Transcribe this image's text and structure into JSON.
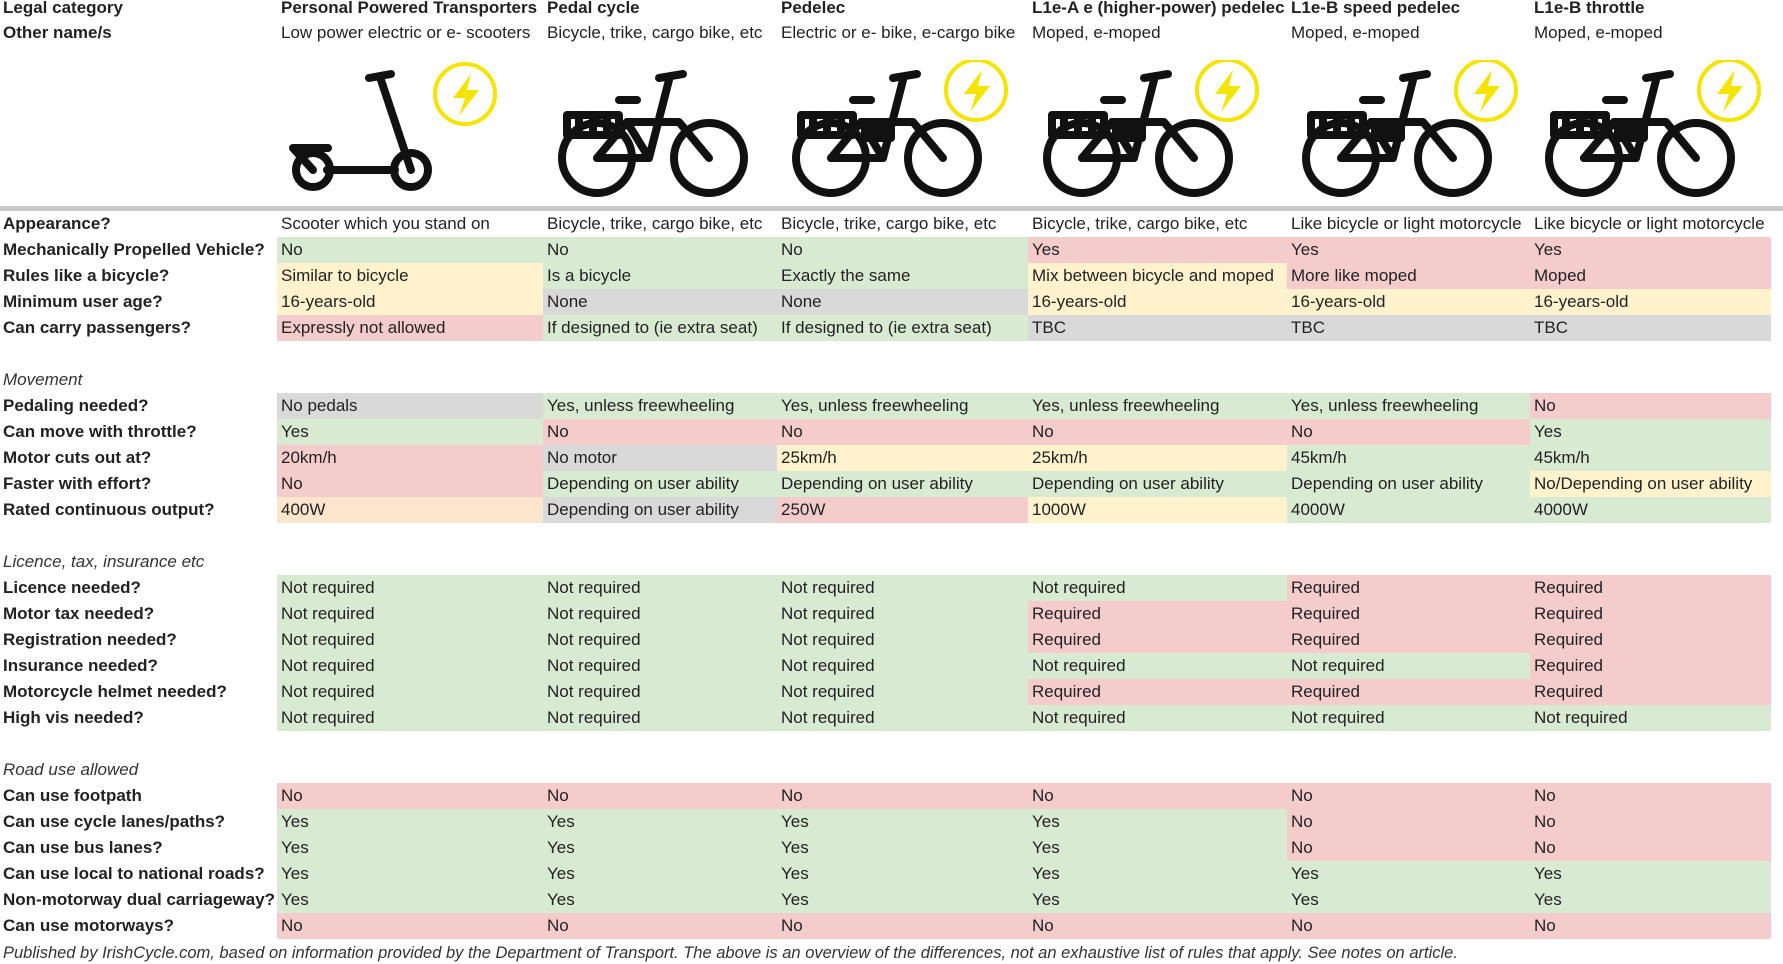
{
  "columns": [
    {
      "category": "Personal Powered Transporters",
      "other_names": "Low power electric or e- scooters",
      "icon": "scooter-icon",
      "electric": true
    },
    {
      "category": "Pedal cycle",
      "other_names": "Bicycle, trike, cargo bike, etc",
      "icon": "bicycle-icon",
      "electric": false
    },
    {
      "category": "Pedelec",
      "other_names": "Electric or e- bike, e-cargo bike",
      "icon": "ebike-icon",
      "electric": true
    },
    {
      "category": "L1e-A e (higher-power) pedelec",
      "other_names": "Moped, e-moped",
      "icon": "ebike-icon",
      "electric": true
    },
    {
      "category": "L1e-B speed pedelec",
      "other_names": "Moped, e-moped",
      "icon": "ebike-icon",
      "electric": true
    },
    {
      "category": "L1e-B throttle",
      "other_names": "Moped, e-moped",
      "icon": "ebike-icon",
      "electric": true
    }
  ],
  "header_labels": {
    "category": "Legal category",
    "other_names": "Other name/s"
  },
  "colors": {
    "green": "#d9ead3",
    "red": "#f4cccc",
    "yellow": "#fff2cc",
    "orange": "#fce5cd",
    "grey": "#d9d9d9",
    "bolt": "#f5e400",
    "divider": "#c9c9c9"
  },
  "sections": [
    {
      "title": "",
      "rows": [
        {
          "label": "Appearance?",
          "cells": [
            [
              "Scooter which you stand on",
              "w"
            ],
            [
              "Bicycle, trike, cargo bike, etc",
              "w"
            ],
            [
              "Bicycle, trike, cargo bike, etc",
              "w"
            ],
            [
              "Bicycle, trike, cargo bike, etc",
              "w"
            ],
            [
              "Like bicycle or light motorcycle",
              "w"
            ],
            [
              "Like bicycle or light motorcycle",
              "w"
            ]
          ]
        },
        {
          "label": "Mechanically Propelled Vehicle?",
          "cells": [
            [
              "No",
              "g"
            ],
            [
              "No",
              "g"
            ],
            [
              "No",
              "g"
            ],
            [
              "Yes",
              "r"
            ],
            [
              "Yes",
              "r"
            ],
            [
              "Yes",
              "r"
            ]
          ]
        },
        {
          "label": "Rules like a bicycle?",
          "cells": [
            [
              "Similar to bicycle",
              "y"
            ],
            [
              "Is a bicycle",
              "g"
            ],
            [
              "Exactly the same",
              "g"
            ],
            [
              "Mix between bicycle and moped",
              "y"
            ],
            [
              "More like moped",
              "r"
            ],
            [
              "Moped",
              "r"
            ]
          ]
        },
        {
          "label": "Minimum user age?",
          "cells": [
            [
              "16-years-old",
              "y"
            ],
            [
              "None",
              "k"
            ],
            [
              "None",
              "k"
            ],
            [
              "16-years-old",
              "y"
            ],
            [
              "16-years-old",
              "y"
            ],
            [
              "16-years-old",
              "y"
            ]
          ]
        },
        {
          "label": "Can carry passengers?",
          "cells": [
            [
              "Expressly not allowed",
              "r"
            ],
            [
              "If designed to (ie extra seat)",
              "g"
            ],
            [
              "If designed to (ie extra seat)",
              "g"
            ],
            [
              "TBC",
              "k"
            ],
            [
              "TBC",
              "k"
            ],
            [
              "TBC",
              "k"
            ]
          ]
        }
      ]
    },
    {
      "title": "Movement",
      "rows": [
        {
          "label": "Pedaling needed?",
          "cells": [
            [
              "No pedals",
              "k"
            ],
            [
              "Yes, unless freewheeling",
              "g"
            ],
            [
              "Yes, unless freewheeling",
              "g"
            ],
            [
              "Yes, unless freewheeling",
              "g"
            ],
            [
              "Yes, unless freewheeling",
              "g"
            ],
            [
              "No",
              "r"
            ]
          ]
        },
        {
          "label": "Can move with throttle?",
          "cells": [
            [
              "Yes",
              "g"
            ],
            [
              "No",
              "r"
            ],
            [
              "No",
              "r"
            ],
            [
              "No",
              "r"
            ],
            [
              "No",
              "r"
            ],
            [
              "Yes",
              "g"
            ]
          ]
        },
        {
          "label": "Motor cuts out at?",
          "cells": [
            [
              "20km/h",
              "r"
            ],
            [
              "No motor",
              "k"
            ],
            [
              "25km/h",
              "y"
            ],
            [
              "25km/h",
              "y"
            ],
            [
              "45km/h",
              "g"
            ],
            [
              "45km/h",
              "g"
            ]
          ]
        },
        {
          "label": "Faster with effort?",
          "cells": [
            [
              "No",
              "r"
            ],
            [
              "Depending on user ability",
              "g"
            ],
            [
              "Depending on user ability",
              "g"
            ],
            [
              "Depending on user ability",
              "g"
            ],
            [
              "Depending on user ability",
              "g"
            ],
            [
              "No/Depending on user ability",
              "y"
            ]
          ]
        },
        {
          "label": "Rated continuous output?",
          "cells": [
            [
              "400W",
              "o"
            ],
            [
              "Depending on user ability",
              "k"
            ],
            [
              "250W",
              "r"
            ],
            [
              "1000W",
              "y"
            ],
            [
              "4000W",
              "g"
            ],
            [
              "4000W",
              "g"
            ]
          ]
        }
      ]
    },
    {
      "title": "Licence, tax, insurance etc",
      "rows": [
        {
          "label": "Licence needed?",
          "cells": [
            [
              "Not required",
              "g"
            ],
            [
              "Not required",
              "g"
            ],
            [
              "Not required",
              "g"
            ],
            [
              "Not required",
              "g"
            ],
            [
              "Required",
              "r"
            ],
            [
              "Required",
              "r"
            ]
          ]
        },
        {
          "label": "Motor tax needed?",
          "cells": [
            [
              "Not required",
              "g"
            ],
            [
              "Not required",
              "g"
            ],
            [
              "Not required",
              "g"
            ],
            [
              "Required",
              "r"
            ],
            [
              "Required",
              "r"
            ],
            [
              "Required",
              "r"
            ]
          ]
        },
        {
          "label": "Registration needed?",
          "cells": [
            [
              "Not required",
              "g"
            ],
            [
              "Not required",
              "g"
            ],
            [
              "Not required",
              "g"
            ],
            [
              "Required",
              "r"
            ],
            [
              "Required",
              "r"
            ],
            [
              "Required",
              "r"
            ]
          ]
        },
        {
          "label": "Insurance needed?",
          "cells": [
            [
              "Not required",
              "g"
            ],
            [
              "Not required",
              "g"
            ],
            [
              "Not required",
              "g"
            ],
            [
              "Not required",
              "g"
            ],
            [
              "Not required",
              "g"
            ],
            [
              "Required",
              "r"
            ]
          ]
        },
        {
          "label": "Motorcycle helmet needed?",
          "cells": [
            [
              "Not required",
              "g"
            ],
            [
              "Not required",
              "g"
            ],
            [
              "Not required",
              "g"
            ],
            [
              "Required",
              "r"
            ],
            [
              "Required",
              "r"
            ],
            [
              "Required",
              "r"
            ]
          ]
        },
        {
          "label": "High vis needed?",
          "cells": [
            [
              "Not required",
              "g"
            ],
            [
              "Not required",
              "g"
            ],
            [
              "Not required",
              "g"
            ],
            [
              "Not required",
              "g"
            ],
            [
              "Not required",
              "g"
            ],
            [
              "Not required",
              "g"
            ]
          ]
        }
      ]
    },
    {
      "title": "Road use allowed",
      "rows": [
        {
          "label": "Can use footpath",
          "cells": [
            [
              "No",
              "r"
            ],
            [
              "No",
              "r"
            ],
            [
              "No",
              "r"
            ],
            [
              "No",
              "r"
            ],
            [
              "No",
              "r"
            ],
            [
              "No",
              "r"
            ]
          ]
        },
        {
          "label": "Can use cycle lanes/paths?",
          "cells": [
            [
              "Yes",
              "g"
            ],
            [
              "Yes",
              "g"
            ],
            [
              "Yes",
              "g"
            ],
            [
              "Yes",
              "g"
            ],
            [
              "No",
              "r"
            ],
            [
              "No",
              "r"
            ]
          ]
        },
        {
          "label": "Can use bus lanes?",
          "cells": [
            [
              "Yes",
              "g"
            ],
            [
              "Yes",
              "g"
            ],
            [
              "Yes",
              "g"
            ],
            [
              "Yes",
              "g"
            ],
            [
              "No",
              "r"
            ],
            [
              "No",
              "r"
            ]
          ]
        },
        {
          "label": "Can use local to national roads?",
          "cells": [
            [
              "Yes",
              "g"
            ],
            [
              "Yes",
              "g"
            ],
            [
              "Yes",
              "g"
            ],
            [
              "Yes",
              "g"
            ],
            [
              "Yes",
              "g"
            ],
            [
              "Yes",
              "g"
            ]
          ]
        },
        {
          "label": "Non-motorway dual carriageway?",
          "cells": [
            [
              "Yes",
              "g"
            ],
            [
              "Yes",
              "g"
            ],
            [
              "Yes",
              "g"
            ],
            [
              "Yes",
              "g"
            ],
            [
              "Yes",
              "g"
            ],
            [
              "Yes",
              "g"
            ]
          ]
        },
        {
          "label": "Can use motorways?",
          "cells": [
            [
              "No",
              "r"
            ],
            [
              "No",
              "r"
            ],
            [
              "No",
              "r"
            ],
            [
              "No",
              "r"
            ],
            [
              "No",
              "r"
            ],
            [
              "No",
              "r"
            ]
          ]
        }
      ]
    }
  ],
  "footer": "Published by IrishCycle.com, based on information provided by the Department of Transport. The above is an overview of the differences, not an exhaustive list of rules that apply. See notes on article."
}
